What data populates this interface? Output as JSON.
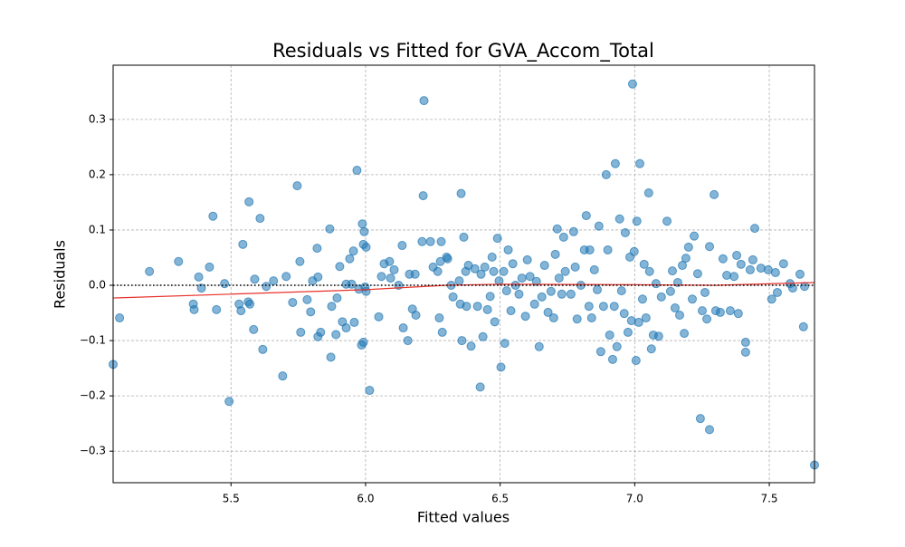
{
  "chart_data": {
    "type": "scatter",
    "title": "Residuals vs Fitted for GVA_Accom_Total",
    "xlabel": "Fitted values",
    "ylabel": "Residuals",
    "xlim": [
      5.062,
      7.668
    ],
    "ylim": [
      -0.357,
      0.398
    ],
    "xticks": [
      5.5,
      {
        "value": 6,
        "label": "6.0"
      },
      6.5,
      {
        "value": 7,
        "label": "7.0"
      },
      7.5
    ],
    "yticks": [
      {
        "value": -0.3,
        "label": "−0.3"
      },
      {
        "value": -0.2,
        "label": "−0.2"
      },
      {
        "value": -0.1,
        "label": "−0.1"
      },
      {
        "value": 0,
        "label": "0.0"
      },
      0.1,
      0.2,
      0.3
    ],
    "grid": true,
    "hline": 0,
    "color": "#1f77b4",
    "x": [
      5.062,
      5.086,
      5.197,
      5.305,
      5.36,
      5.363,
      5.38,
      5.39,
      5.42,
      5.433,
      5.446,
      5.476,
      5.493,
      5.53,
      5.537,
      5.544,
      5.564,
      5.567,
      5.57,
      5.584,
      5.588,
      5.608,
      5.618,
      5.631,
      5.658,
      5.692,
      5.705,
      5.729,
      5.746,
      5.756,
      5.759,
      5.783,
      5.796,
      5.803,
      5.82,
      5.823,
      5.823,
      5.833,
      5.867,
      5.871,
      5.874,
      5.89,
      5.894,
      5.904,
      5.914,
      5.928,
      5.928,
      5.941,
      5.948,
      5.955,
      5.958,
      5.968,
      5.975,
      5.985,
      5.988,
      5.992,
      5.992,
      5.995,
      5.998,
      6.002,
      6.002,
      6.015,
      6.049,
      6.059,
      6.069,
      6.089,
      6.093,
      6.106,
      6.123,
      6.136,
      6.14,
      6.157,
      6.163,
      6.174,
      6.184,
      6.187,
      6.21,
      6.214,
      6.217,
      6.241,
      6.251,
      6.268,
      6.274,
      6.278,
      6.281,
      6.285,
      6.301,
      6.305,
      6.318,
      6.325,
      6.348,
      6.352,
      6.355,
      6.358,
      6.365,
      6.372,
      6.375,
      6.382,
      6.392,
      6.406,
      6.416,
      6.426,
      6.429,
      6.436,
      6.443,
      6.453,
      6.463,
      6.47,
      6.476,
      6.48,
      6.49,
      6.496,
      6.503,
      6.513,
      6.517,
      6.524,
      6.53,
      6.54,
      6.547,
      6.557,
      6.57,
      6.581,
      6.594,
      6.601,
      6.611,
      6.628,
      6.635,
      6.645,
      6.655,
      6.665,
      6.678,
      6.689,
      6.699,
      6.705,
      6.712,
      6.719,
      6.729,
      6.736,
      6.742,
      6.763,
      6.773,
      6.779,
      6.786,
      6.8,
      6.813,
      6.82,
      6.83,
      6.833,
      6.84,
      6.85,
      6.861,
      6.867,
      6.874,
      6.884,
      6.894,
      6.9,
      6.907,
      6.918,
      6.924,
      6.928,
      6.934,
      6.944,
      6.951,
      6.961,
      6.965,
      6.975,
      6.982,
      6.988,
      6.992,
      6.998,
      7.005,
      7.008,
      7.015,
      7.019,
      7.029,
      7.035,
      7.042,
      7.052,
      7.055,
      7.062,
      7.069,
      7.079,
      7.089,
      7.099,
      7.12,
      7.133,
      7.14,
      7.15,
      7.16,
      7.167,
      7.177,
      7.184,
      7.19,
      7.2,
      7.214,
      7.221,
      7.234,
      7.244,
      7.251,
      7.261,
      7.268,
      7.278,
      7.278,
      7.295,
      7.301,
      7.318,
      7.328,
      7.342,
      7.355,
      7.369,
      7.379,
      7.385,
      7.395,
      7.412,
      7.412,
      7.429,
      7.439,
      7.446,
      7.469,
      7.496,
      7.509,
      7.523,
      7.53,
      7.553,
      7.577,
      7.587,
      7.614,
      7.627,
      7.631,
      7.668
    ],
    "values": [
      -0.143,
      -0.059,
      0.025,
      0.043,
      -0.034,
      -0.044,
      0.015,
      -0.005,
      0.033,
      0.125,
      -0.044,
      0.003,
      -0.21,
      -0.034,
      -0.046,
      0.074,
      -0.03,
      0.151,
      -0.034,
      -0.08,
      0.011,
      0.121,
      -0.116,
      -0.002,
      0.008,
      -0.164,
      0.016,
      -0.031,
      0.18,
      0.043,
      -0.085,
      -0.026,
      -0.048,
      0.008,
      0.067,
      0.015,
      -0.093,
      -0.085,
      0.102,
      -0.13,
      -0.038,
      -0.089,
      -0.023,
      0.034,
      -0.066,
      0.002,
      -0.077,
      0.048,
      0.002,
      0.062,
      -0.067,
      0.208,
      -0.007,
      -0.108,
      0.111,
      0.074,
      -0.103,
      0.097,
      -0.003,
      0.069,
      -0.011,
      -0.19,
      -0.057,
      0.016,
      0.039,
      0.043,
      0.013,
      0.028,
      0.0,
      0.072,
      -0.077,
      -0.1,
      0.02,
      -0.043,
      0.02,
      -0.054,
      0.079,
      0.162,
      0.334,
      0.079,
      0.033,
      0.025,
      -0.059,
      0.043,
      0.079,
      -0.085,
      0.051,
      0.048,
      0.0,
      -0.021,
      0.008,
      -0.034,
      0.166,
      -0.1,
      0.087,
      0.025,
      -0.038,
      0.036,
      -0.11,
      0.03,
      -0.038,
      -0.184,
      0.02,
      -0.093,
      0.033,
      -0.044,
      -0.02,
      0.051,
      0.025,
      -0.066,
      0.085,
      0.008,
      -0.148,
      0.025,
      -0.105,
      -0.01,
      0.064,
      -0.046,
      0.039,
      0.0,
      -0.016,
      0.013,
      -0.056,
      0.046,
      0.016,
      -0.034,
      0.007,
      -0.111,
      -0.021,
      0.036,
      -0.049,
      -0.011,
      -0.059,
      0.056,
      0.102,
      0.013,
      -0.016,
      0.087,
      0.025,
      -0.016,
      0.097,
      0.033,
      -0.061,
      0.0,
      0.064,
      0.126,
      -0.038,
      0.064,
      -0.059,
      0.028,
      -0.008,
      0.107,
      -0.12,
      -0.038,
      0.2,
      0.064,
      -0.09,
      -0.134,
      -0.038,
      0.22,
      -0.111,
      0.12,
      -0.01,
      -0.051,
      0.095,
      -0.085,
      0.051,
      -0.064,
      0.364,
      0.061,
      -0.136,
      0.116,
      -0.067,
      0.22,
      -0.025,
      0.038,
      -0.059,
      0.167,
      0.025,
      -0.115,
      -0.09,
      0.003,
      -0.092,
      -0.021,
      0.116,
      -0.011,
      0.026,
      -0.041,
      0.005,
      -0.054,
      0.036,
      -0.087,
      0.049,
      0.069,
      -0.025,
      0.089,
      0.021,
      -0.241,
      -0.046,
      -0.013,
      -0.061,
      0.07,
      -0.261,
      0.164,
      -0.046,
      -0.049,
      0.048,
      0.018,
      -0.046,
      0.016,
      0.054,
      -0.051,
      0.038,
      -0.103,
      -0.121,
      0.028,
      0.046,
      0.103,
      0.031,
      0.028,
      -0.025,
      0.023,
      -0.013,
      0.039,
      0.003,
      -0.005,
      0.02,
      -0.075,
      -0.002,
      -0.325
    ],
    "trend": {
      "color": "#e8312a",
      "x": [
        5.062,
        5.5,
        6.0,
        6.3,
        6.5,
        7.0,
        7.3,
        7.668
      ],
      "values": [
        -0.023,
        -0.016,
        -0.008,
        0.0,
        0.002,
        0.001,
        0.0,
        0.005
      ]
    }
  }
}
